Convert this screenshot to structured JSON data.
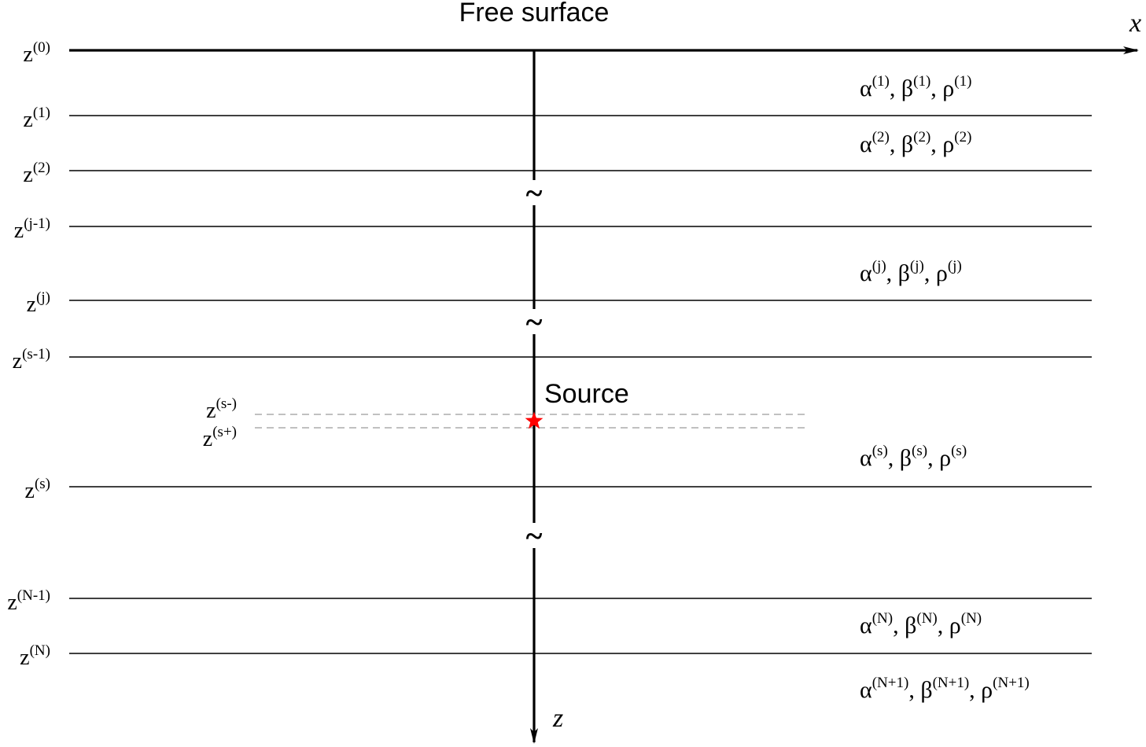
{
  "title": "Free surface",
  "source_label": "Source",
  "axes": {
    "x_label": "x",
    "z_label": "z"
  },
  "source_color": "#ff0000",
  "interfaces": [
    {
      "base": "z",
      "sup": "(0)"
    },
    {
      "base": "z",
      "sup": "(1)"
    },
    {
      "base": "z",
      "sup": "(2)"
    },
    {
      "base": "z",
      "sup": "(j-1)"
    },
    {
      "base": "z",
      "sup": "(j)"
    },
    {
      "base": "z",
      "sup": "(s-1)"
    },
    {
      "base": "z",
      "sup": "(s)"
    },
    {
      "base": "z",
      "sup": "(N-1)"
    },
    {
      "base": "z",
      "sup": "(N)"
    }
  ],
  "source_planes": [
    {
      "base": "z",
      "sup": "(s-)"
    },
    {
      "base": "z",
      "sup": "(s+)"
    }
  ],
  "layers": [
    {
      "sup": "(1)"
    },
    {
      "sup": "(2)"
    },
    {
      "sup": "(j)"
    },
    {
      "sup": "(s)"
    },
    {
      "sup": "(N)"
    },
    {
      "sup": "(N+1)"
    }
  ],
  "params": {
    "alpha": "α",
    "beta": "β",
    "rho": "ρ",
    "sep": ", "
  },
  "break_glyph": "~"
}
